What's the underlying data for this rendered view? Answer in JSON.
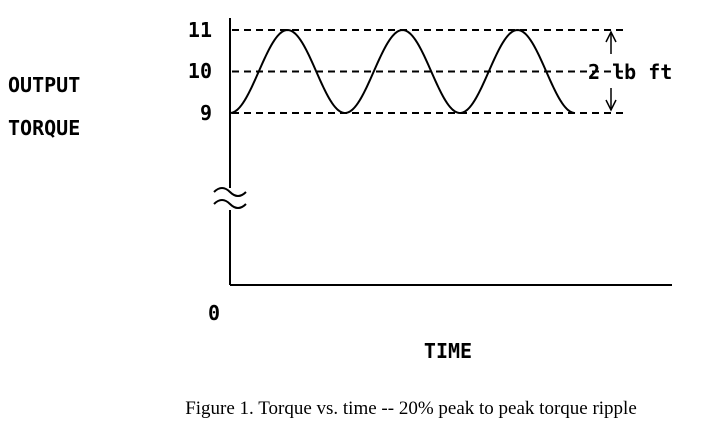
{
  "chart_data": {
    "type": "line",
    "ylabel_lines": [
      "OUTPUT",
      "TORQUE"
    ],
    "xlabel": "TIME",
    "origin_label": "0",
    "y_ticks": [
      {
        "value": 11,
        "label": "11"
      },
      {
        "value": 10,
        "label": "10"
      },
      {
        "value": 9,
        "label": "9"
      }
    ],
    "reference_lines": [
      11,
      10,
      9
    ],
    "axis_break": true,
    "series": [
      {
        "x": [
          0,
          0.25,
          0.5,
          0.75,
          1,
          1.25,
          1.5,
          1.75,
          2,
          2.25,
          2.5,
          2.75,
          3
        ],
        "values": [
          9,
          10,
          11,
          10,
          9,
          10,
          11,
          10,
          9,
          10,
          11,
          10,
          9
        ]
      }
    ],
    "cycles": 3,
    "annotation": {
      "text": "2 lb ft",
      "from": 9,
      "to": 11
    },
    "caption": "Figure 1.  Torque vs. time -- 20% peak to peak torque ripple"
  }
}
